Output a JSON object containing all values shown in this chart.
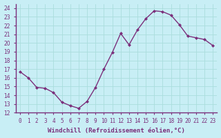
{
  "x": [
    0,
    1,
    2,
    3,
    4,
    5,
    6,
    7,
    8,
    9,
    10,
    11,
    12,
    13,
    14,
    15,
    16,
    17,
    18,
    19,
    20,
    21,
    22,
    23
  ],
  "y": [
    16.7,
    16.0,
    14.9,
    14.8,
    14.3,
    13.2,
    12.8,
    12.5,
    13.3,
    14.9,
    17.0,
    18.9,
    21.1,
    19.8,
    21.5,
    22.8,
    23.7,
    23.6,
    23.2,
    22.1,
    20.8,
    20.6,
    20.4,
    19.7
  ],
  "line_color": "#7b2f7b",
  "marker": "D",
  "marker_color": "#7b2f7b",
  "marker_size": 2.0,
  "bg_color": "#c8eef5",
  "grid_color": "#aadddd",
  "xlabel": "Windchill (Refroidissement éolien,°C)",
  "xlabel_fontsize": 6.5,
  "xlim": [
    -0.5,
    23.5
  ],
  "ylim": [
    12,
    24.5
  ],
  "yticks": [
    12,
    13,
    14,
    15,
    16,
    17,
    18,
    19,
    20,
    21,
    22,
    23,
    24
  ],
  "xticks": [
    0,
    1,
    2,
    3,
    4,
    5,
    6,
    7,
    8,
    9,
    10,
    11,
    12,
    13,
    14,
    15,
    16,
    17,
    18,
    19,
    20,
    21,
    22,
    23
  ],
  "tick_fontsize": 5.5,
  "line_width": 1.0,
  "spine_color": "#7b2f7b"
}
